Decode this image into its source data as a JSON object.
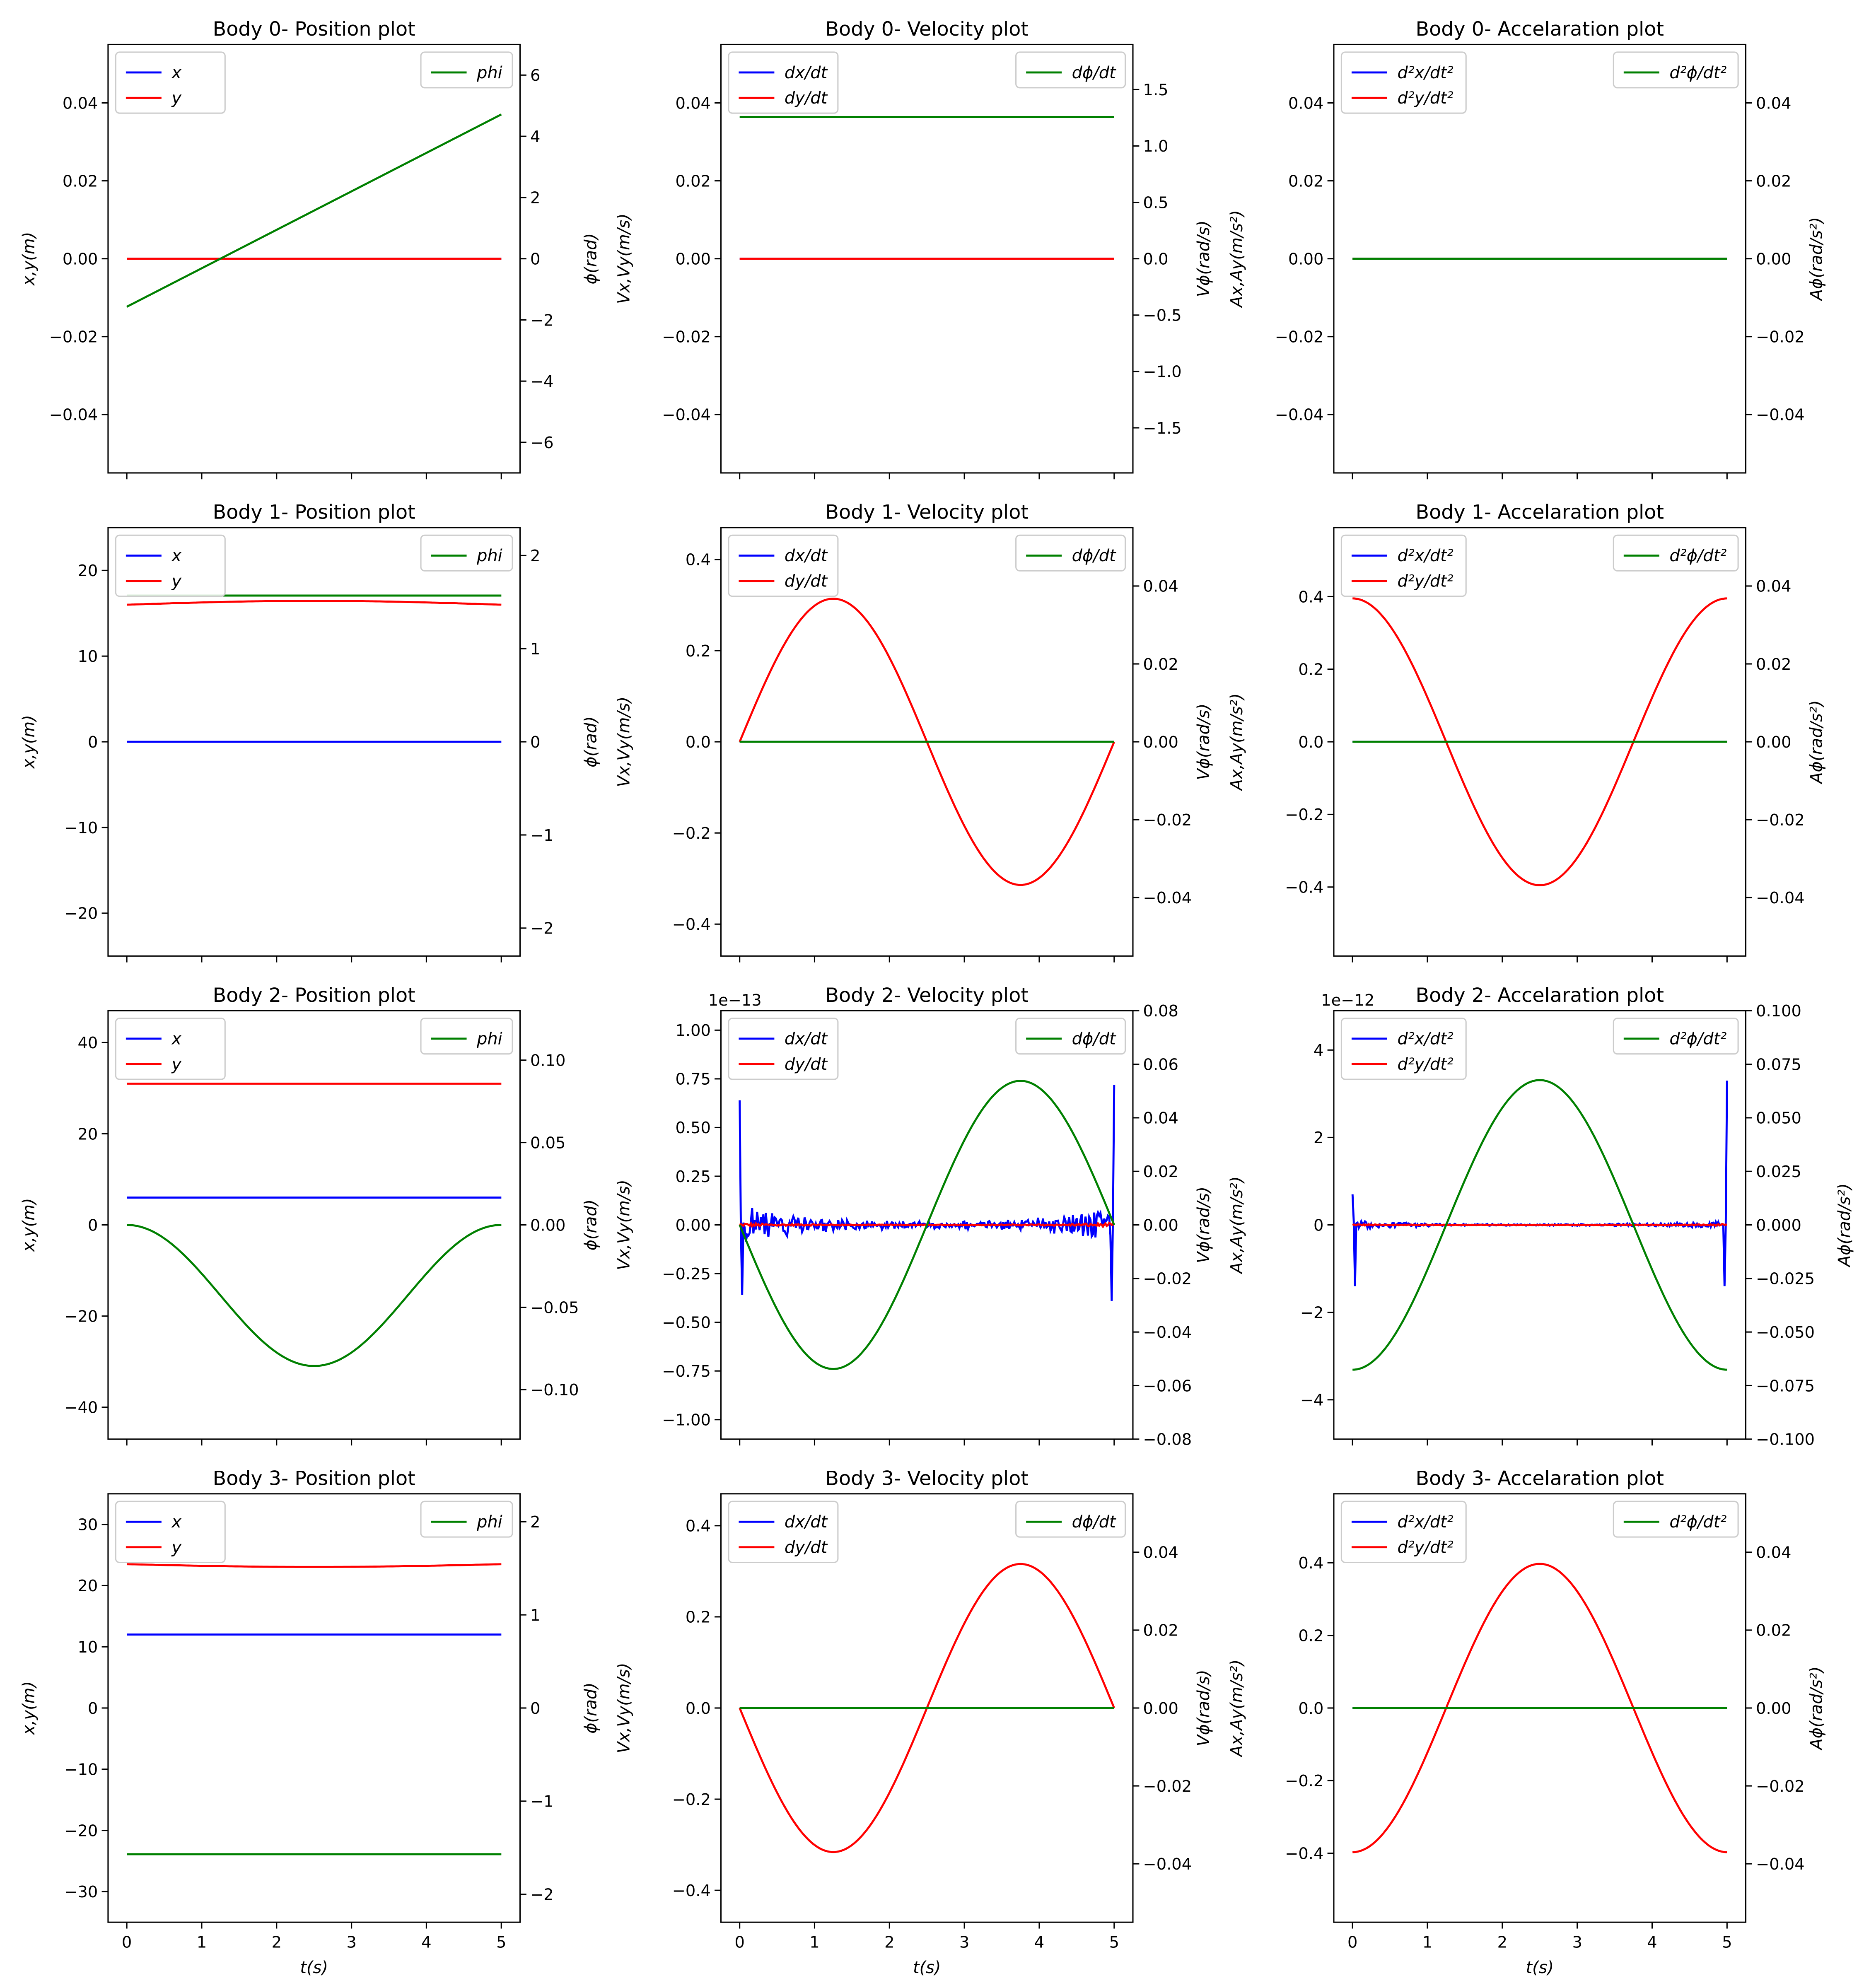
{
  "colors": {
    "x": "#0000ff",
    "y": "#ff0000",
    "phi": "#008000",
    "axis": "#000000"
  },
  "shared_x": {
    "ticks": [
      0,
      1,
      2,
      3,
      4,
      5
    ],
    "range": [
      -0.25,
      5.25
    ],
    "xlabel": "t(s)"
  },
  "ylabels": {
    "position": {
      "left": "x,y(m)",
      "right": "ϕ(rad)"
    },
    "velocity": {
      "left": "Vx,Vy(m/s)",
      "right": "Vϕ(rad/s)"
    },
    "acceleration": {
      "left": "Ax,Ay(m/s²)",
      "right": "Aϕ(rad/s²)"
    }
  },
  "legends": {
    "position": {
      "left": [
        "x",
        "y"
      ],
      "right": [
        "phi"
      ]
    },
    "velocity": {
      "left": [
        "dx/dt",
        "dy/dt"
      ],
      "right": [
        "dϕ/dt"
      ]
    },
    "acceleration": {
      "left": [
        "d²x/dt²",
        "d²y/dt²"
      ],
      "right": [
        "d²ϕ/dt²"
      ]
    }
  },
  "chart_data": [
    {
      "type": "line",
      "title": "Body 0- Position plot",
      "kind": "position",
      "left": {
        "ylim": [
          -0.055,
          0.055
        ],
        "ticks": [
          "0.04",
          "0.02",
          "0.00",
          "−0.02",
          "−0.04"
        ],
        "tickvals": [
          0.04,
          0.02,
          0,
          -0.02,
          -0.04
        ]
      },
      "right": {
        "ylim": [
          -7,
          7
        ],
        "ticks": [
          "6",
          "4",
          "2",
          "0",
          "−2",
          "−4",
          "−6"
        ],
        "tickvals": [
          6,
          4,
          2,
          0,
          -2,
          -4,
          -6
        ]
      },
      "series": [
        {
          "name": "x",
          "axis": "left",
          "fn": "const",
          "p": [
            0
          ]
        },
        {
          "name": "y",
          "axis": "left",
          "fn": "const",
          "p": [
            0
          ]
        },
        {
          "name": "phi",
          "axis": "right",
          "fn": "linear",
          "p": [
            -1.57,
            1.257
          ]
        }
      ]
    },
    {
      "type": "line",
      "title": "Body 0- Velocity plot",
      "kind": "velocity",
      "left": {
        "ylim": [
          -0.055,
          0.055
        ],
        "ticks": [
          "0.04",
          "0.02",
          "0.00",
          "−0.02",
          "−0.04"
        ],
        "tickvals": [
          0.04,
          0.02,
          0,
          -0.02,
          -0.04
        ]
      },
      "right": {
        "ylim": [
          -1.9,
          1.9
        ],
        "ticks": [
          "1.5",
          "1.0",
          "0.5",
          "0.0",
          "−0.5",
          "−1.0",
          "−1.5"
        ],
        "tickvals": [
          1.5,
          1.0,
          0.5,
          0,
          -0.5,
          -1.0,
          -1.5
        ]
      },
      "series": [
        {
          "name": "dx/dt",
          "axis": "left",
          "fn": "const",
          "p": [
            0
          ]
        },
        {
          "name": "dy/dt",
          "axis": "left",
          "fn": "const",
          "p": [
            0
          ]
        },
        {
          "name": "dϕ/dt",
          "axis": "right",
          "fn": "const",
          "p": [
            1.257
          ]
        }
      ]
    },
    {
      "type": "line",
      "title": "Body 0- Accelaration plot",
      "kind": "acceleration",
      "left": {
        "ylim": [
          -0.055,
          0.055
        ],
        "ticks": [
          "0.04",
          "0.02",
          "0.00",
          "−0.02",
          "−0.04"
        ],
        "tickvals": [
          0.04,
          0.02,
          0,
          -0.02,
          -0.04
        ]
      },
      "right": {
        "ylim": [
          -0.055,
          0.055
        ],
        "ticks": [
          "0.04",
          "0.02",
          "0.00",
          "−0.02",
          "−0.04"
        ],
        "tickvals": [
          0.04,
          0.02,
          0,
          -0.02,
          -0.04
        ]
      },
      "series": [
        {
          "name": "d²x/dt²",
          "axis": "left",
          "fn": "const",
          "p": [
            0
          ]
        },
        {
          "name": "d²y/dt²",
          "axis": "left",
          "fn": "const",
          "p": [
            0
          ]
        },
        {
          "name": "d²ϕ/dt²",
          "axis": "right",
          "fn": "const",
          "p": [
            0
          ]
        }
      ]
    },
    {
      "type": "line",
      "title": "Body 1- Position plot",
      "kind": "position",
      "left": {
        "ylim": [
          -25,
          25
        ],
        "ticks": [
          "20",
          "10",
          "0",
          "−10",
          "−20"
        ],
        "tickvals": [
          20,
          10,
          0,
          -10,
          -20
        ]
      },
      "right": {
        "ylim": [
          -2.3,
          2.3
        ],
        "ticks": [
          "2",
          "1",
          "0",
          "−1",
          "−2"
        ],
        "tickvals": [
          2,
          1,
          0,
          -1,
          -2
        ]
      },
      "series": [
        {
          "name": "x",
          "axis": "left",
          "fn": "const",
          "p": [
            0
          ]
        },
        {
          "name": "y",
          "axis": "left",
          "fn": "sin2",
          "p": [
            16.0,
            0.45
          ]
        },
        {
          "name": "phi",
          "axis": "right",
          "fn": "sin2",
          "p": [
            1.57,
            0.0
          ]
        }
      ]
    },
    {
      "type": "line",
      "title": "Body 1- Velocity plot",
      "kind": "velocity",
      "left": {
        "ylim": [
          -0.47,
          0.47
        ],
        "ticks": [
          "0.4",
          "0.2",
          "0.0",
          "−0.2",
          "−0.4"
        ],
        "tickvals": [
          0.4,
          0.2,
          0,
          -0.2,
          -0.4
        ]
      },
      "right": {
        "ylim": [
          -0.055,
          0.055
        ],
        "ticks": [
          "0.04",
          "0.02",
          "0.00",
          "−0.02",
          "−0.04"
        ],
        "tickvals": [
          0.04,
          0.02,
          0,
          -0.02,
          -0.04
        ]
      },
      "series": [
        {
          "name": "dx/dt",
          "axis": "left",
          "fn": "const",
          "p": [
            0
          ]
        },
        {
          "name": "dy/dt",
          "axis": "left",
          "fn": "sin",
          "p": [
            0.314
          ]
        },
        {
          "name": "dϕ/dt",
          "axis": "right",
          "fn": "const",
          "p": [
            0
          ]
        }
      ]
    },
    {
      "type": "line",
      "title": "Body 1- Accelaration plot",
      "kind": "acceleration",
      "left": {
        "ylim": [
          -0.59,
          0.59
        ],
        "ticks": [
          "0.4",
          "0.2",
          "0.0",
          "−0.2",
          "−0.4"
        ],
        "tickvals": [
          0.4,
          0.2,
          0,
          -0.2,
          -0.4
        ]
      },
      "right": {
        "ylim": [
          -0.055,
          0.055
        ],
        "ticks": [
          "0.04",
          "0.02",
          "0.00",
          "−0.02",
          "−0.04"
        ],
        "tickvals": [
          0.04,
          0.02,
          0,
          -0.02,
          -0.04
        ]
      },
      "series": [
        {
          "name": "d²x/dt²",
          "axis": "left",
          "fn": "const",
          "p": [
            0
          ]
        },
        {
          "name": "d²y/dt²",
          "axis": "left",
          "fn": "cos",
          "p": [
            0.395
          ]
        },
        {
          "name": "d²ϕ/dt²",
          "axis": "right",
          "fn": "const",
          "p": [
            0
          ]
        }
      ]
    },
    {
      "type": "line",
      "title": "Body 2- Position plot",
      "kind": "position",
      "left": {
        "ylim": [
          -47,
          47
        ],
        "ticks": [
          "40",
          "20",
          "0",
          "−20",
          "−40"
        ],
        "tickvals": [
          40,
          20,
          0,
          -20,
          -40
        ]
      },
      "right": {
        "ylim": [
          -0.13,
          0.13
        ],
        "ticks": [
          "0.10",
          "0.05",
          "0.00",
          "−0.05",
          "−0.10"
        ],
        "tickvals": [
          0.1,
          0.05,
          0,
          -0.05,
          -0.1
        ]
      },
      "series": [
        {
          "name": "x",
          "axis": "left",
          "fn": "const",
          "p": [
            6
          ]
        },
        {
          "name": "y",
          "axis": "left",
          "fn": "const",
          "p": [
            31
          ]
        },
        {
          "name": "phi",
          "axis": "right",
          "fn": "cosm1",
          "p": [
            0.0428
          ]
        }
      ]
    },
    {
      "type": "line",
      "title": "Body 2- Velocity plot",
      "kind": "velocity",
      "offset_text": "1e−13",
      "left": {
        "ylim": [
          -1.1,
          1.1
        ],
        "ticks": [
          "1.00",
          "0.75",
          "0.50",
          "0.25",
          "0.00",
          "−0.25",
          "−0.50",
          "−0.75",
          "−1.00"
        ],
        "tickvals": [
          1.0,
          0.75,
          0.5,
          0.25,
          0,
          -0.25,
          -0.5,
          -0.75,
          -1.0
        ]
      },
      "right": {
        "ylim": [
          -0.08,
          0.08
        ],
        "ticks": [
          "0.08",
          "0.06",
          "0.04",
          "0.02",
          "0.00",
          "−0.02",
          "−0.04",
          "−0.06",
          "−0.08"
        ],
        "tickvals": [
          0.08,
          0.06,
          0.04,
          0.02,
          0,
          -0.02,
          -0.04,
          -0.06,
          -0.08
        ]
      },
      "series": [
        {
          "name": "dx/dt",
          "axis": "left",
          "fn": "noise",
          "p": [
            0.64,
            -0.36,
            0.72,
            -0.39,
            0.1
          ]
        },
        {
          "name": "dy/dt",
          "axis": "left",
          "fn": "noise",
          "p": [
            0,
            0,
            0,
            0,
            0.01
          ]
        },
        {
          "name": "dϕ/dt",
          "axis": "right",
          "fn": "sin",
          "p": [
            -0.0538
          ]
        }
      ]
    },
    {
      "type": "line",
      "title": "Body 2- Accelaration plot",
      "kind": "acceleration",
      "offset_text": "1e−12",
      "left": {
        "ylim": [
          -4.9,
          4.9
        ],
        "ticks": [
          "4",
          "2",
          "0",
          "−2",
          "−4"
        ],
        "tickvals": [
          4,
          2,
          0,
          -2,
          -4
        ]
      },
      "right": {
        "ylim": [
          -0.1,
          0.1
        ],
        "ticks": [
          "0.100",
          "0.075",
          "0.050",
          "0.025",
          "0.000",
          "−0.025",
          "−0.050",
          "−0.075",
          "−0.100"
        ],
        "tickvals": [
          0.1,
          0.075,
          0.05,
          0.025,
          0,
          -0.025,
          -0.05,
          -0.075,
          -0.1
        ]
      },
      "series": [
        {
          "name": "d²x/dt²",
          "axis": "left",
          "fn": "noise",
          "p": [
            0.7,
            -1.4,
            3.3,
            -1.4,
            0.1
          ]
        },
        {
          "name": "d²y/dt²",
          "axis": "left",
          "fn": "noise",
          "p": [
            0,
            0,
            0,
            0,
            0.02
          ]
        },
        {
          "name": "d²ϕ/dt²",
          "axis": "right",
          "fn": "cos",
          "p": [
            -0.0676
          ]
        }
      ]
    },
    {
      "type": "line",
      "title": "Body 3- Position plot",
      "kind": "position",
      "left": {
        "ylim": [
          -35,
          35
        ],
        "ticks": [
          "30",
          "20",
          "10",
          "0",
          "−10",
          "−20",
          "−30"
        ],
        "tickvals": [
          30,
          20,
          10,
          0,
          -10,
          -20,
          -30
        ]
      },
      "right": {
        "ylim": [
          -2.3,
          2.3
        ],
        "ticks": [
          "2",
          "1",
          "0",
          "−1",
          "−2"
        ],
        "tickvals": [
          2,
          1,
          0,
          -1,
          -2
        ]
      },
      "series": [
        {
          "name": "x",
          "axis": "left",
          "fn": "const",
          "p": [
            12
          ]
        },
        {
          "name": "y",
          "axis": "left",
          "fn": "sin2",
          "p": [
            23.5,
            -0.45
          ]
        },
        {
          "name": "phi",
          "axis": "right",
          "fn": "const",
          "p": [
            -1.57
          ]
        }
      ]
    },
    {
      "type": "line",
      "title": "Body 3- Velocity plot",
      "kind": "velocity",
      "left": {
        "ylim": [
          -0.47,
          0.47
        ],
        "ticks": [
          "0.4",
          "0.2",
          "0.0",
          "−0.2",
          "−0.4"
        ],
        "tickvals": [
          0.4,
          0.2,
          0,
          -0.2,
          -0.4
        ]
      },
      "right": {
        "ylim": [
          -0.055,
          0.055
        ],
        "ticks": [
          "0.04",
          "0.02",
          "0.00",
          "−0.02",
          "−0.04"
        ],
        "tickvals": [
          0.04,
          0.02,
          0,
          -0.02,
          -0.04
        ]
      },
      "series": [
        {
          "name": "dx/dt",
          "axis": "left",
          "fn": "const",
          "p": [
            0
          ]
        },
        {
          "name": "dy/dt",
          "axis": "left",
          "fn": "sin",
          "p": [
            -0.316
          ]
        },
        {
          "name": "dϕ/dt",
          "axis": "right",
          "fn": "const",
          "p": [
            0
          ]
        }
      ]
    },
    {
      "type": "line",
      "title": "Body 3- Accelaration plot",
      "kind": "acceleration",
      "left": {
        "ylim": [
          -0.59,
          0.59
        ],
        "ticks": [
          "0.4",
          "0.2",
          "0.0",
          "−0.2",
          "−0.4"
        ],
        "tickvals": [
          0.4,
          0.2,
          0,
          -0.2,
          -0.4
        ]
      },
      "right": {
        "ylim": [
          -0.055,
          0.055
        ],
        "ticks": [
          "0.04",
          "0.02",
          "0.00",
          "−0.02",
          "−0.04"
        ],
        "tickvals": [
          0.04,
          0.02,
          0,
          -0.02,
          -0.04
        ]
      },
      "series": [
        {
          "name": "d²x/dt²",
          "axis": "left",
          "fn": "const",
          "p": [
            0
          ]
        },
        {
          "name": "d²y/dt²",
          "axis": "left",
          "fn": "cos",
          "p": [
            -0.397
          ]
        },
        {
          "name": "d²ϕ/dt²",
          "axis": "right",
          "fn": "const",
          "p": [
            0
          ]
        }
      ]
    }
  ]
}
